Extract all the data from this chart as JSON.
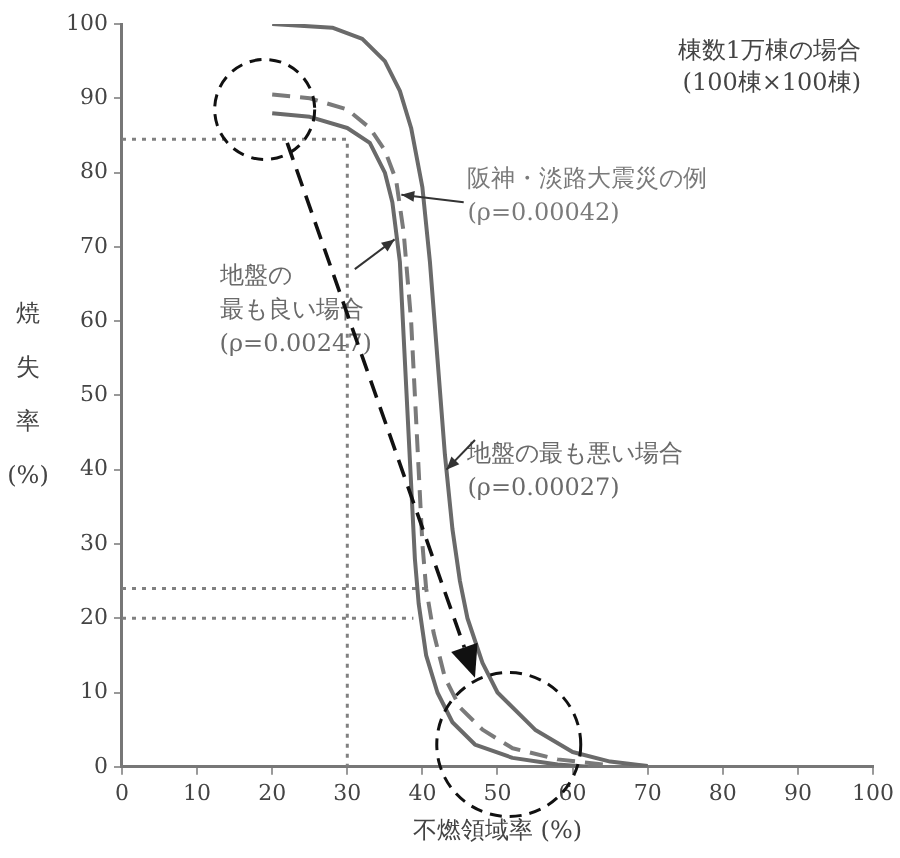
{
  "chart_data": {
    "type": "line",
    "xlabel": "不燃領域率 (%)",
    "ylabel": "焼失率(%)",
    "xlim": [
      0,
      100
    ],
    "xticks": [
      0,
      10,
      20,
      30,
      40,
      50,
      60,
      70,
      80,
      90,
      100
    ],
    "ylim": [
      0,
      100
    ],
    "yticks": [
      0,
      10,
      20,
      30,
      40,
      50,
      60,
      70,
      80,
      90,
      100
    ],
    "grid": false,
    "legend": false,
    "marker": "none",
    "annotations": [
      "棟数1万棟の場合\n(100棟×100棟)"
    ],
    "series": [
      {
        "name": "地盤の最も悪い場合\n(ρ=0.00027)",
        "color": "#6a6a6a",
        "line_style": "solid",
        "x": [
          20,
          28,
          32,
          35,
          37,
          38.5,
          40,
          41,
          42,
          43,
          44,
          45,
          46,
          48,
          50,
          55,
          60,
          65,
          70
        ],
        "values": [
          100,
          99.5,
          98,
          95,
          91,
          86,
          78,
          68,
          55,
          42,
          32,
          25,
          20,
          14,
          10,
          5,
          2,
          0.7,
          0.1
        ]
      },
      {
        "name": "阪神・淡路大震災の例\n(ρ=0.00042)",
        "color": "#7a7a7a",
        "line_style": "dashed",
        "x": [
          20,
          25,
          30,
          33,
          35,
          36.5,
          37.5,
          38.5,
          39,
          39.5,
          40,
          40.5,
          41.5,
          43,
          45,
          48,
          52,
          58,
          65
        ],
        "values": [
          90.5,
          90,
          88.5,
          86,
          83,
          79,
          72,
          60,
          50,
          40,
          30,
          24,
          18,
          12,
          8,
          5,
          2.5,
          1,
          0.2
        ]
      },
      {
        "name": "地盤の最も良い場合\n(ρ=0.00247)",
        "color": "#6a6a6a",
        "line_style": "solid",
        "x": [
          20,
          25,
          30,
          33,
          35,
          36,
          37,
          37.5,
          38,
          38.5,
          39,
          39.5,
          40.5,
          42,
          44,
          47,
          52,
          58,
          62
        ],
        "values": [
          88,
          87.5,
          86,
          84,
          80,
          76,
          68,
          58,
          48,
          38,
          28,
          22,
          15,
          10,
          6,
          3,
          1.2,
          0.3,
          0
        ]
      },
      {
        "color": "#808080",
        "line_style": "dotted",
        "x": [
          0,
          30,
          30
        ],
        "values": [
          84.5,
          84.5,
          0
        ]
      },
      {
        "color": "#808080",
        "line_style": "dotted",
        "x": [
          0,
          40.7
        ],
        "values": [
          24,
          24
        ]
      },
      {
        "color": "#808080",
        "line_style": "dotted",
        "x": [
          0,
          38.8
        ],
        "values": [
          20,
          20
        ]
      }
    ]
  }
}
